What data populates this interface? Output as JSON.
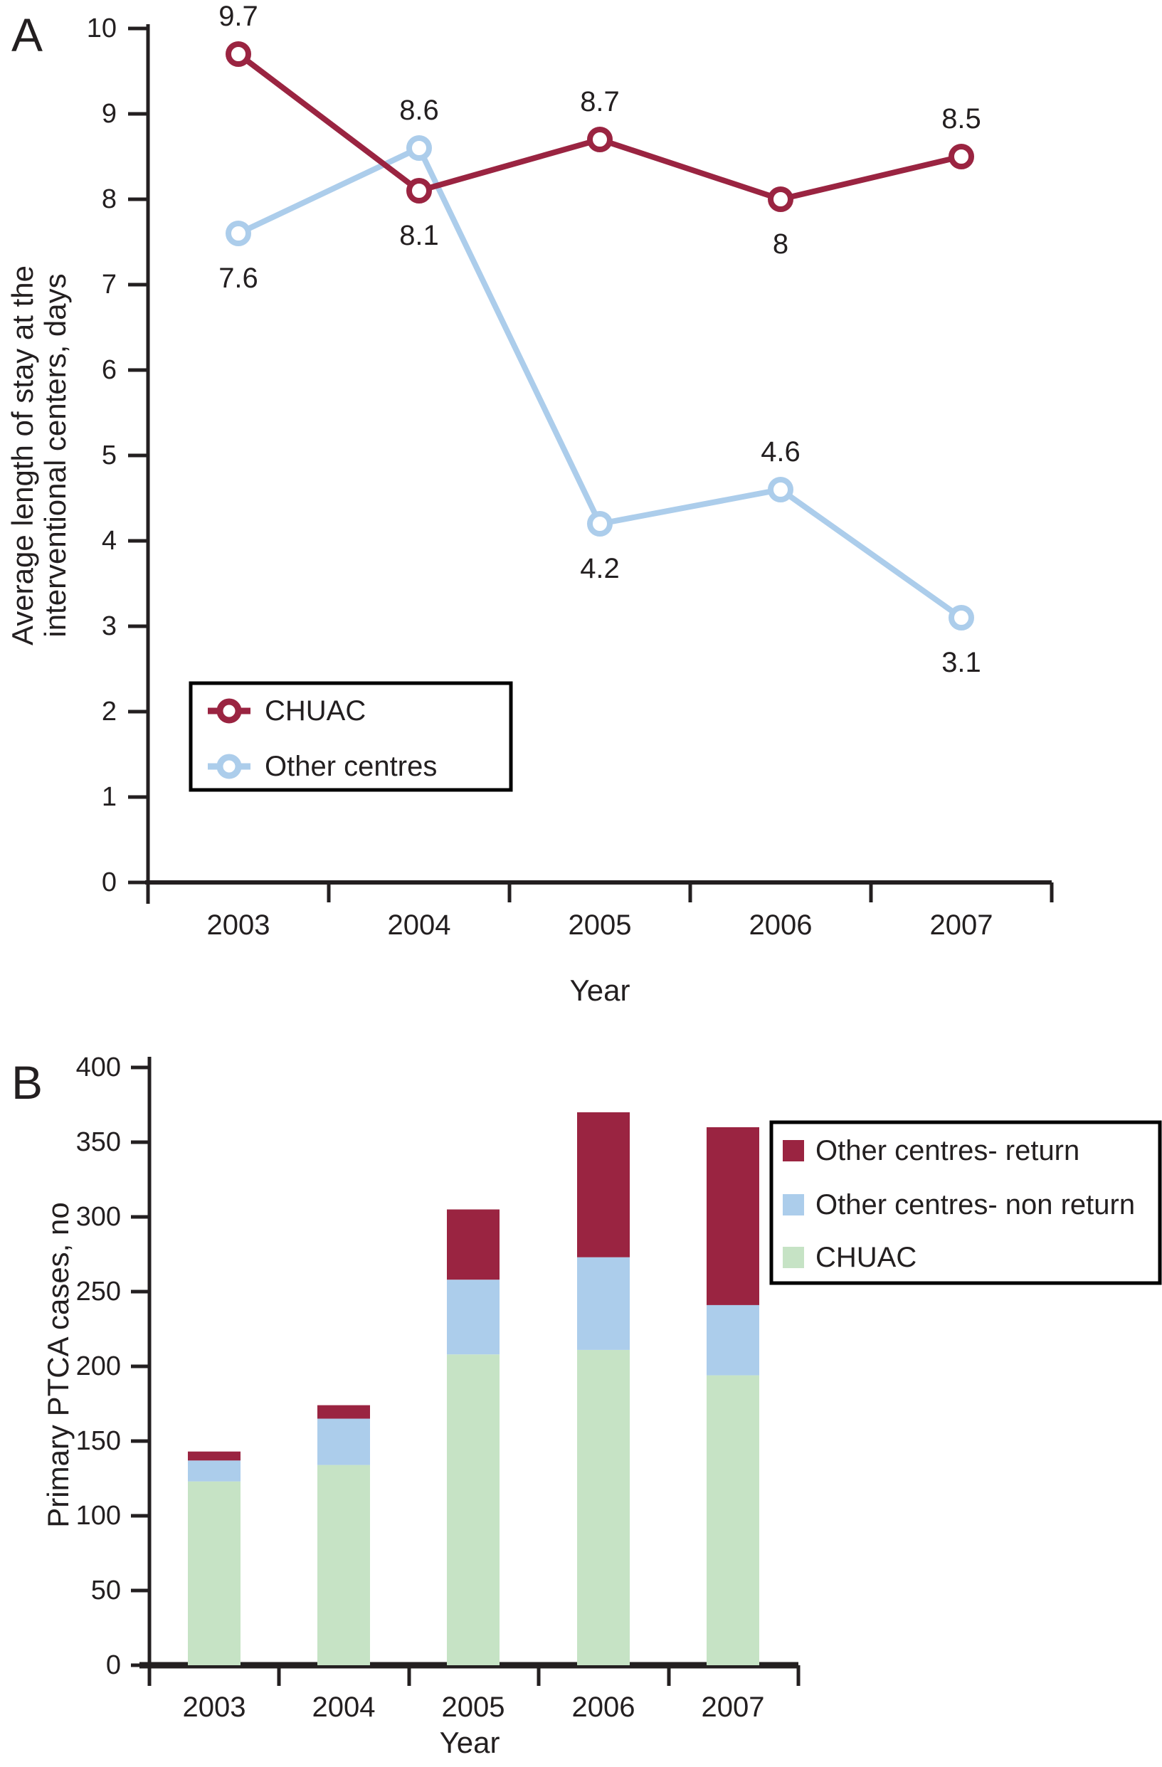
{
  "page": {
    "background": "#ffffff",
    "text_color": "#231f20"
  },
  "panels": [
    {
      "label": "A"
    },
    {
      "label": "B"
    }
  ],
  "chart_data": [
    {
      "type": "line",
      "panel_label": "A",
      "x_categories": [
        "2003",
        "2004",
        "2005",
        "2006",
        "2007"
      ],
      "xlabel": "Year",
      "ylabel_lines": [
        "Average length of stay at the",
        "interventional centers, days"
      ],
      "ylim": [
        0,
        10
      ],
      "yticks": [
        0,
        1,
        2,
        3,
        4,
        5,
        6,
        7,
        8,
        9,
        10
      ],
      "grid": false,
      "marker": "open-circle",
      "series": [
        {
          "name": "Other centres",
          "color": "#ACCDEB",
          "values": [
            7.6,
            8.6,
            4.2,
            4.6,
            3.1
          ],
          "value_labels": [
            "7.6",
            "8.6",
            "4.2",
            "4.6",
            "3.1"
          ],
          "label_positions": [
            "below",
            "above",
            "below",
            "above",
            "below"
          ]
        },
        {
          "name": "CHUAC",
          "color": "#9A2441",
          "values": [
            9.7,
            8.1,
            8.7,
            8,
            8.5
          ],
          "value_labels": [
            "9.7",
            "8.1",
            "8.7",
            "8",
            "8.5"
          ],
          "label_positions": [
            "above",
            "below",
            "above",
            "below",
            "above"
          ]
        }
      ],
      "legend": [
        "CHUAC",
        "Other centres"
      ],
      "legend_position": "lower-left-box"
    },
    {
      "type": "stacked-bar",
      "panel_label": "B",
      "x_categories": [
        "2003",
        "2004",
        "2005",
        "2006",
        "2007"
      ],
      "xlabel": "Year",
      "ylabel": "Primary PTCA cases, no",
      "ylim": [
        0,
        400
      ],
      "yticks": [
        0,
        50,
        100,
        150,
        200,
        250,
        300,
        350,
        400
      ],
      "grid": false,
      "series_bottom_to_top": [
        {
          "name": "CHUAC",
          "color": "#C6E3C5",
          "values": [
            123,
            134,
            208,
            211,
            194
          ]
        },
        {
          "name": "Other centres- non return",
          "color": "#ACCDEB",
          "values": [
            14,
            31,
            50,
            62,
            47
          ]
        },
        {
          "name": "Other centres- return",
          "color": "#9A2441",
          "values": [
            6,
            9,
            47,
            97,
            119
          ]
        }
      ],
      "stack_totals": [
        143,
        174,
        305,
        370,
        360
      ],
      "legend_top_to_bottom": [
        "Other centres- return",
        "Other centres- non return",
        "CHUAC"
      ],
      "legend_position": "upper-right-box"
    }
  ]
}
